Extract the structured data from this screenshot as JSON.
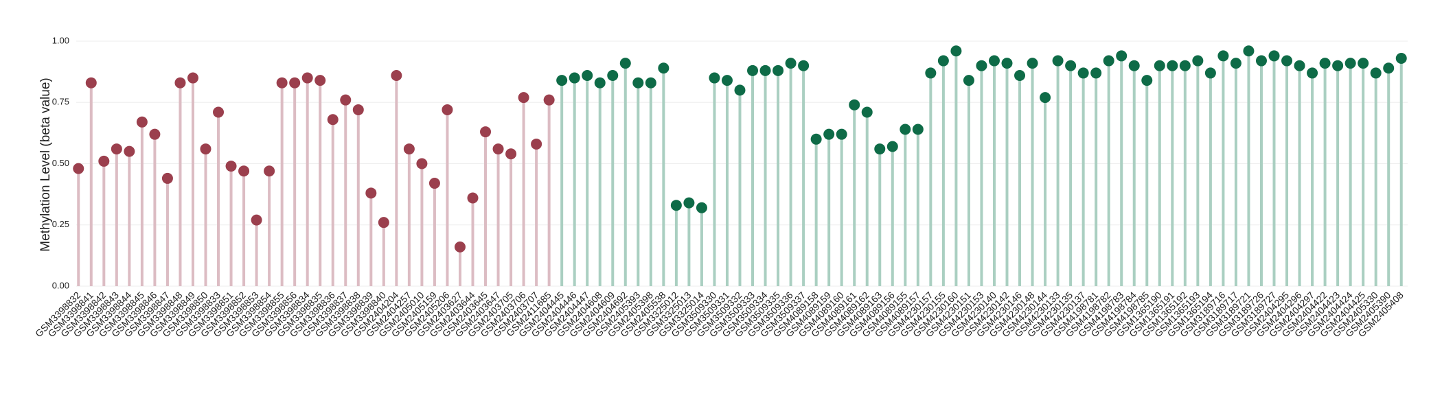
{
  "chart_data": {
    "type": "lollipop",
    "y_label": "Methylation Level (beta value)",
    "ylim": [
      0,
      1
    ],
    "yticks": [
      {
        "value": 0,
        "label": "0.00"
      },
      {
        "value": 0.25,
        "label": "0.25"
      },
      {
        "value": 0.5,
        "label": "0.50"
      },
      {
        "value": 0.75,
        "label": "0.75"
      },
      {
        "value": 1,
        "label": "1.00"
      }
    ],
    "grid": true,
    "categories": [
      "GSM3398832",
      "GSM3398841",
      "GSM3398842",
      "GSM3398843",
      "GSM3398844",
      "GSM3398845",
      "GSM3398846",
      "GSM3398847",
      "GSM3398848",
      "GSM3398849",
      "GSM3398850",
      "GSM3398833",
      "GSM3398851",
      "GSM3398852",
      "GSM3398853",
      "GSM3398854",
      "GSM3398855",
      "GSM3398856",
      "GSM3398834",
      "GSM3398835",
      "GSM3398836",
      "GSM3398837",
      "GSM3398838",
      "GSM3398839",
      "GSM3398840",
      "GSM2404204",
      "GSM2404257",
      "GSM2405010",
      "GSM2405159",
      "GSM2405206",
      "GSM2403627",
      "GSM2403644",
      "GSM2403645",
      "GSM2403647",
      "GSM2403705",
      "GSM2403706",
      "GSM2403707",
      "GSM2411685",
      "GSM2404445",
      "GSM2404446",
      "GSM2404447",
      "GSM2404608",
      "GSM2404609",
      "GSM2404692",
      "GSM2405393",
      "GSM2405398",
      "GSM2405538",
      "GSM3325012",
      "GSM3325013",
      "GSM3325014",
      "GSM3509330",
      "GSM3509331",
      "GSM3509332",
      "GSM3509333",
      "GSM3509334",
      "GSM3509335",
      "GSM3509336",
      "GSM3509337",
      "GSM4089158",
      "GSM4089159",
      "GSM4089160",
      "GSM4089161",
      "GSM4089162",
      "GSM4089163",
      "GSM4089156",
      "GSM4089155",
      "GSM4089157",
      "GSM4230157",
      "GSM4230155",
      "GSM4230160",
      "GSM4230151",
      "GSM4230153",
      "GSM4230140",
      "GSM4230142",
      "GSM4230146",
      "GSM4230148",
      "GSM4230144",
      "GSM4230133",
      "GSM4230135",
      "GSM4230137",
      "GSM4198781",
      "GSM4198782",
      "GSM4198783",
      "GSM4198784",
      "GSM4198785",
      "GSM1365190",
      "GSM1365191",
      "GSM1365192",
      "GSM1365193",
      "GSM1365194",
      "GSM3189716",
      "GSM3189717",
      "GSM3189721",
      "GSM3189726",
      "GSM3189727",
      "GSM2404295",
      "GSM2404296",
      "GSM2404297",
      "GSM2404422",
      "GSM2404423",
      "GSM2404424",
      "GSM2404425",
      "GSM2405330",
      "GSM2405390",
      "GSM2405408"
    ],
    "series": [
      {
        "color": "#9b3f4d",
        "stem_color": "#dcbcc3",
        "values": [
          0.48,
          0.83,
          0.51,
          0.56,
          0.55,
          0.67,
          0.62,
          0.44,
          0.83,
          0.85,
          0.56,
          0.71,
          0.49,
          0.47,
          0.27,
          0.47,
          0.83,
          0.83,
          0.85,
          0.84,
          0.68,
          0.76,
          0.72,
          0.38,
          0.26,
          0.86,
          0.56,
          0.5,
          0.42,
          0.72,
          0.16,
          0.36,
          0.63,
          0.56,
          0.54,
          0.77,
          0.58,
          0.76,
          null,
          null,
          null,
          null,
          null,
          null,
          null,
          null,
          null,
          null,
          null,
          null,
          null,
          null,
          null,
          null,
          null,
          null,
          null,
          null,
          null,
          null,
          null,
          null,
          null,
          null,
          null,
          null,
          null,
          null,
          null,
          null,
          null,
          null,
          null,
          null,
          null,
          null,
          null,
          null,
          null,
          null,
          null,
          null,
          null,
          null,
          null,
          null,
          null,
          null,
          null,
          null,
          null,
          null,
          null,
          null,
          null,
          null,
          null,
          null,
          null,
          null,
          null,
          null,
          null,
          null,
          null
        ]
      },
      {
        "color": "#0e6b47",
        "stem_color": "#aacfc1",
        "values": [
          null,
          null,
          null,
          null,
          null,
          null,
          null,
          null,
          null,
          null,
          null,
          null,
          null,
          null,
          null,
          null,
          null,
          null,
          null,
          null,
          null,
          null,
          null,
          null,
          null,
          null,
          null,
          null,
          null,
          null,
          null,
          null,
          null,
          null,
          null,
          null,
          null,
          null,
          0.84,
          0.85,
          0.86,
          0.83,
          0.86,
          0.91,
          0.83,
          0.83,
          0.89,
          0.33,
          0.34,
          0.32,
          0.85,
          0.84,
          0.8,
          0.88,
          0.88,
          0.88,
          0.91,
          0.9,
          0.6,
          0.62,
          0.62,
          0.74,
          0.71,
          0.56,
          0.57,
          0.64,
          0.64,
          0.87,
          0.92,
          0.96,
          0.84,
          0.9,
          0.92,
          0.91,
          0.86,
          0.91,
          0.77,
          0.92,
          0.9,
          0.87,
          0.87,
          0.92,
          0.94,
          0.9,
          0.84,
          0.9,
          0.9,
          0.9,
          0.92,
          0.87,
          0.94,
          0.91,
          0.96,
          0.92,
          0.94,
          0.92,
          0.9,
          0.87,
          0.91,
          0.9,
          0.91,
          0.91,
          0.87,
          0.89,
          0.93
        ]
      }
    ]
  }
}
